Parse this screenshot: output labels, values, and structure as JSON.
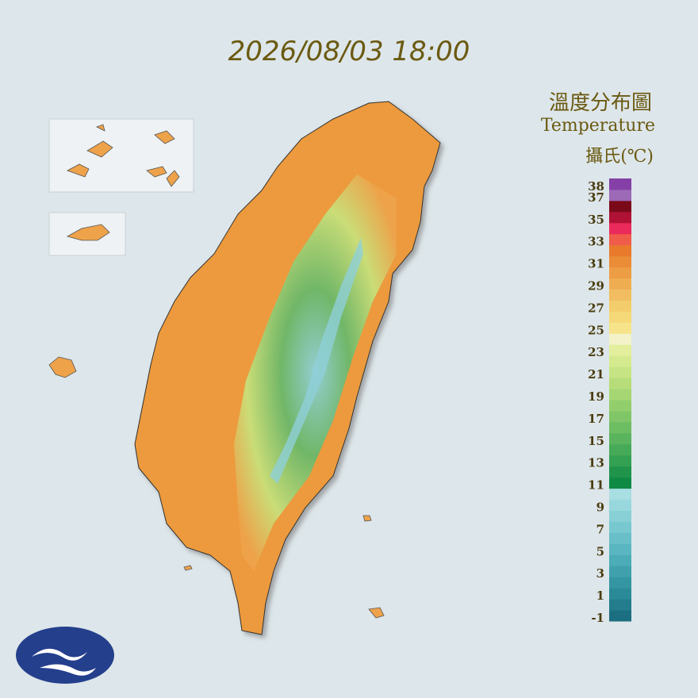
{
  "header": {
    "timestamp": "2026/08/03 18:00"
  },
  "legend": {
    "title_zh": "溫度分布圖",
    "title_en": "Temperature",
    "unit": "攝氏(℃)",
    "ticks": [
      38,
      37,
      35,
      33,
      31,
      29,
      27,
      25,
      23,
      21,
      19,
      17,
      15,
      13,
      11,
      9,
      7,
      5,
      3,
      1,
      -1
    ],
    "colors": [
      "#1c6f80",
      "#237d8c",
      "#2b8a98",
      "#3596a3",
      "#40a1ad",
      "#4cacb7",
      "#5ab6c0",
      "#68bfc8",
      "#78c8cf",
      "#88d0d6",
      "#98d8dd",
      "#a8dfe3",
      "#0f8a44",
      "#1f944a",
      "#33a052",
      "#46aa58",
      "#5ab45e",
      "#6dbd63",
      "#80c668",
      "#93ce6d",
      "#a5d673",
      "#b6dd7a",
      "#c6e483",
      "#d5ea8e",
      "#e3ef9c",
      "#f3f2c8",
      "#f7e48a",
      "#f5d878",
      "#f3cc6c",
      "#f1bd60",
      "#efad52",
      "#ed9d44",
      "#eb8c36",
      "#e97a2c",
      "#ef5c4a",
      "#ea2a5a",
      "#b01236",
      "#7a0a18",
      "#9d6ab8",
      "#8540a8"
    ]
  }
}
